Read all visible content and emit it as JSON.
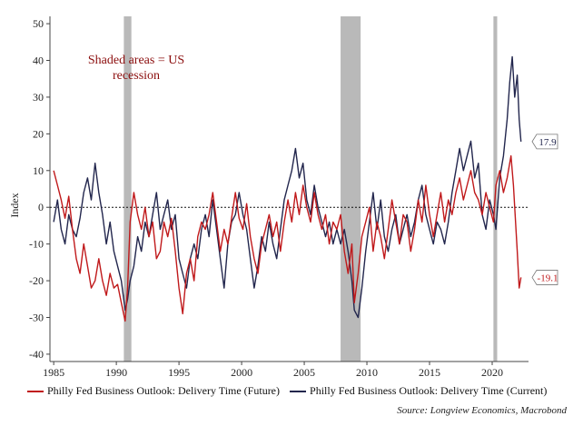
{
  "chart_data": {
    "type": "line",
    "ylabel": "Index",
    "ylim": [
      -42,
      52
    ],
    "xlim": [
      1984.7,
      2022.9
    ],
    "y_ticks": [
      -40,
      -30,
      -20,
      -10,
      0,
      10,
      20,
      30,
      40,
      50
    ],
    "x_ticks": [
      1985,
      1990,
      1995,
      2000,
      2005,
      2010,
      2015,
      2020
    ],
    "zero_line": "dotted",
    "annotation": "Shaded areas = US\nrecession",
    "recessions": [
      [
        1990.6,
        1991.2
      ],
      [
        2007.9,
        2009.5
      ],
      [
        2020.1,
        2020.4
      ]
    ],
    "series": [
      {
        "name": "Philly Fed Business Outlook: Delivery Time (Future)",
        "color": "#c0191b",
        "end_label": "-19.1",
        "points": [
          [
            1985.0,
            10
          ],
          [
            1985.3,
            6
          ],
          [
            1985.6,
            2
          ],
          [
            1985.9,
            -3
          ],
          [
            1986.2,
            3
          ],
          [
            1986.5,
            -6
          ],
          [
            1986.8,
            -14
          ],
          [
            1987.1,
            -18
          ],
          [
            1987.4,
            -10
          ],
          [
            1987.7,
            -16
          ],
          [
            1988.0,
            -22
          ],
          [
            1988.3,
            -20
          ],
          [
            1988.6,
            -14
          ],
          [
            1988.9,
            -20
          ],
          [
            1989.2,
            -24
          ],
          [
            1989.5,
            -18
          ],
          [
            1989.8,
            -22
          ],
          [
            1990.1,
            -21
          ],
          [
            1990.4,
            -26
          ],
          [
            1990.7,
            -31
          ],
          [
            1990.9,
            -22
          ],
          [
            1991.1,
            -4
          ],
          [
            1991.4,
            4
          ],
          [
            1991.7,
            -2
          ],
          [
            1992.0,
            -6
          ],
          [
            1992.3,
            0
          ],
          [
            1992.6,
            -8
          ],
          [
            1992.9,
            -4
          ],
          [
            1993.2,
            -14
          ],
          [
            1993.5,
            -12
          ],
          [
            1993.8,
            -4
          ],
          [
            1994.1,
            -8
          ],
          [
            1994.4,
            -3
          ],
          [
            1994.7,
            -12
          ],
          [
            1995.0,
            -22
          ],
          [
            1995.3,
            -29
          ],
          [
            1995.6,
            -18
          ],
          [
            1995.9,
            -14
          ],
          [
            1996.2,
            -20
          ],
          [
            1996.5,
            -8
          ],
          [
            1996.8,
            -4
          ],
          [
            1997.1,
            -6
          ],
          [
            1997.4,
            -2
          ],
          [
            1997.7,
            4
          ],
          [
            1998.0,
            -4
          ],
          [
            1998.3,
            -12
          ],
          [
            1998.6,
            -6
          ],
          [
            1998.9,
            -10
          ],
          [
            1999.2,
            -3
          ],
          [
            1999.5,
            4
          ],
          [
            1999.8,
            -3
          ],
          [
            2000.1,
            -6
          ],
          [
            2000.4,
            1
          ],
          [
            2000.7,
            -8
          ],
          [
            2001.0,
            -14
          ],
          [
            2001.3,
            -18
          ],
          [
            2001.6,
            -10
          ],
          [
            2001.9,
            -6
          ],
          [
            2002.2,
            -2
          ],
          [
            2002.5,
            -8
          ],
          [
            2002.8,
            -4
          ],
          [
            2003.1,
            -12
          ],
          [
            2003.4,
            -4
          ],
          [
            2003.7,
            2
          ],
          [
            2004.0,
            -4
          ],
          [
            2004.3,
            4
          ],
          [
            2004.6,
            -2
          ],
          [
            2004.9,
            6
          ],
          [
            2005.2,
            0
          ],
          [
            2005.5,
            -4
          ],
          [
            2005.8,
            4
          ],
          [
            2006.1,
            -2
          ],
          [
            2006.4,
            -6
          ],
          [
            2006.7,
            -2
          ],
          [
            2007.0,
            -10
          ],
          [
            2007.3,
            -4
          ],
          [
            2007.6,
            -6
          ],
          [
            2007.9,
            -2
          ],
          [
            2008.2,
            -12
          ],
          [
            2008.5,
            -18
          ],
          [
            2008.8,
            -10
          ],
          [
            2009.0,
            -26
          ],
          [
            2009.3,
            -18
          ],
          [
            2009.6,
            -8
          ],
          [
            2009.9,
            -4
          ],
          [
            2010.2,
            0
          ],
          [
            2010.5,
            -12
          ],
          [
            2010.8,
            -4
          ],
          [
            2011.1,
            -8
          ],
          [
            2011.4,
            -14
          ],
          [
            2011.7,
            -6
          ],
          [
            2012.0,
            2
          ],
          [
            2012.3,
            -4
          ],
          [
            2012.6,
            -10
          ],
          [
            2012.9,
            -2
          ],
          [
            2013.2,
            -4
          ],
          [
            2013.5,
            -12
          ],
          [
            2013.8,
            -6
          ],
          [
            2014.1,
            2
          ],
          [
            2014.4,
            -4
          ],
          [
            2014.7,
            6
          ],
          [
            2015.0,
            -2
          ],
          [
            2015.3,
            -8
          ],
          [
            2015.6,
            -2
          ],
          [
            2015.9,
            4
          ],
          [
            2016.2,
            -4
          ],
          [
            2016.5,
            2
          ],
          [
            2016.8,
            -2
          ],
          [
            2017.1,
            4
          ],
          [
            2017.4,
            8
          ],
          [
            2017.7,
            2
          ],
          [
            2018.0,
            6
          ],
          [
            2018.3,
            10
          ],
          [
            2018.6,
            4
          ],
          [
            2018.9,
            2
          ],
          [
            2019.2,
            -2
          ],
          [
            2019.5,
            4
          ],
          [
            2019.8,
            0
          ],
          [
            2020.1,
            -4
          ],
          [
            2020.3,
            6
          ],
          [
            2020.6,
            10
          ],
          [
            2020.9,
            4
          ],
          [
            2021.2,
            8
          ],
          [
            2021.5,
            14
          ],
          [
            2021.7,
            6
          ],
          [
            2021.9,
            -6
          ],
          [
            2022.0,
            -12
          ],
          [
            2022.15,
            -22
          ],
          [
            2022.3,
            -19.1
          ]
        ]
      },
      {
        "name": "Philly Fed Business Outlook: Delivery Time (Current)",
        "color": "#22264d",
        "end_label": "17.9",
        "points": [
          [
            1985.0,
            -4
          ],
          [
            1985.3,
            2
          ],
          [
            1985.6,
            -6
          ],
          [
            1985.9,
            -10
          ],
          [
            1986.2,
            -2
          ],
          [
            1986.5,
            -6
          ],
          [
            1986.8,
            -8
          ],
          [
            1987.1,
            -3
          ],
          [
            1987.4,
            4
          ],
          [
            1987.7,
            8
          ],
          [
            1988.0,
            2
          ],
          [
            1988.3,
            12
          ],
          [
            1988.6,
            4
          ],
          [
            1988.9,
            -2
          ],
          [
            1989.2,
            -10
          ],
          [
            1989.5,
            -4
          ],
          [
            1989.8,
            -12
          ],
          [
            1990.1,
            -16
          ],
          [
            1990.4,
            -20
          ],
          [
            1990.7,
            -28
          ],
          [
            1990.9,
            -25
          ],
          [
            1991.1,
            -20
          ],
          [
            1991.4,
            -16
          ],
          [
            1991.7,
            -8
          ],
          [
            1992.0,
            -12
          ],
          [
            1992.3,
            -4
          ],
          [
            1992.6,
            -8
          ],
          [
            1992.9,
            -2
          ],
          [
            1993.2,
            4
          ],
          [
            1993.5,
            -6
          ],
          [
            1993.8,
            -2
          ],
          [
            1994.1,
            2
          ],
          [
            1994.4,
            -6
          ],
          [
            1994.7,
            -2
          ],
          [
            1995.0,
            -14
          ],
          [
            1995.3,
            -18
          ],
          [
            1995.6,
            -22
          ],
          [
            1995.9,
            -14
          ],
          [
            1996.2,
            -10
          ],
          [
            1996.5,
            -14
          ],
          [
            1996.8,
            -6
          ],
          [
            1997.1,
            -2
          ],
          [
            1997.4,
            -8
          ],
          [
            1997.7,
            2
          ],
          [
            1998.0,
            -6
          ],
          [
            1998.3,
            -14
          ],
          [
            1998.6,
            -22
          ],
          [
            1998.9,
            -10
          ],
          [
            1999.2,
            -4
          ],
          [
            1999.5,
            -2
          ],
          [
            1999.8,
            4
          ],
          [
            2000.1,
            -2
          ],
          [
            2000.4,
            -6
          ],
          [
            2000.7,
            -14
          ],
          [
            2001.0,
            -22
          ],
          [
            2001.3,
            -16
          ],
          [
            2001.6,
            -8
          ],
          [
            2001.9,
            -12
          ],
          [
            2002.2,
            -4
          ],
          [
            2002.5,
            -10
          ],
          [
            2002.8,
            -14
          ],
          [
            2003.1,
            -6
          ],
          [
            2003.4,
            2
          ],
          [
            2003.7,
            6
          ],
          [
            2004.0,
            10
          ],
          [
            2004.3,
            16
          ],
          [
            2004.6,
            8
          ],
          [
            2004.9,
            12
          ],
          [
            2005.2,
            2
          ],
          [
            2005.5,
            -2
          ],
          [
            2005.8,
            6
          ],
          [
            2006.1,
            0
          ],
          [
            2006.4,
            -4
          ],
          [
            2006.7,
            -8
          ],
          [
            2007.0,
            -4
          ],
          [
            2007.3,
            -10
          ],
          [
            2007.6,
            -6
          ],
          [
            2007.9,
            -10
          ],
          [
            2008.2,
            -6
          ],
          [
            2008.5,
            -12
          ],
          [
            2008.8,
            -20
          ],
          [
            2009.0,
            -28
          ],
          [
            2009.3,
            -30
          ],
          [
            2009.6,
            -22
          ],
          [
            2009.9,
            -12
          ],
          [
            2010.2,
            -4
          ],
          [
            2010.5,
            4
          ],
          [
            2010.8,
            -6
          ],
          [
            2011.1,
            2
          ],
          [
            2011.4,
            -8
          ],
          [
            2011.7,
            -12
          ],
          [
            2012.0,
            -6
          ],
          [
            2012.3,
            -2
          ],
          [
            2012.6,
            -10
          ],
          [
            2012.9,
            -6
          ],
          [
            2013.2,
            -2
          ],
          [
            2013.5,
            -8
          ],
          [
            2013.8,
            -4
          ],
          [
            2014.1,
            2
          ],
          [
            2014.4,
            6
          ],
          [
            2014.7,
            -2
          ],
          [
            2015.0,
            -6
          ],
          [
            2015.3,
            -10
          ],
          [
            2015.6,
            -4
          ],
          [
            2015.9,
            -6
          ],
          [
            2016.2,
            -10
          ],
          [
            2016.5,
            -4
          ],
          [
            2016.8,
            4
          ],
          [
            2017.1,
            10
          ],
          [
            2017.4,
            16
          ],
          [
            2017.7,
            10
          ],
          [
            2018.0,
            14
          ],
          [
            2018.3,
            18
          ],
          [
            2018.6,
            8
          ],
          [
            2018.9,
            12
          ],
          [
            2019.2,
            -2
          ],
          [
            2019.5,
            -6
          ],
          [
            2019.8,
            2
          ],
          [
            2020.1,
            -2
          ],
          [
            2020.3,
            -6
          ],
          [
            2020.6,
            8
          ],
          [
            2020.9,
            14
          ],
          [
            2021.2,
            24
          ],
          [
            2021.4,
            34
          ],
          [
            2021.6,
            41
          ],
          [
            2021.8,
            30
          ],
          [
            2022.0,
            36
          ],
          [
            2022.15,
            24
          ],
          [
            2022.3,
            17.9
          ]
        ]
      }
    ]
  },
  "legend": {
    "future_label": "Philly Fed Business Outlook: Delivery Time (Future)",
    "current_label": "Philly Fed Business Outlook: Delivery Time (Current)"
  },
  "source": "Source: Longview Economics, Macrobond"
}
